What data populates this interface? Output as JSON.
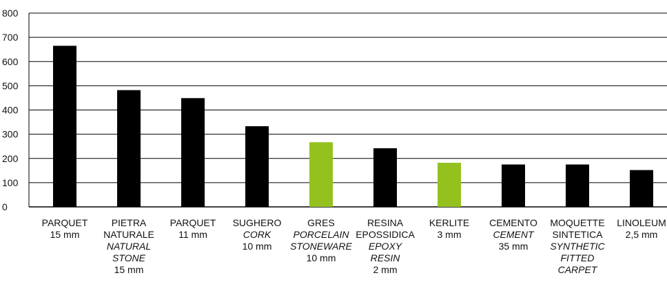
{
  "chart_data": {
    "type": "bar",
    "title": "",
    "xlabel": "",
    "ylabel": "",
    "ylim": [
      0,
      800
    ],
    "yticks": [
      "0",
      "100",
      "200",
      "300",
      "400",
      "500",
      "600",
      "700",
      "800"
    ],
    "grid": true,
    "legend": "none",
    "colors": {
      "default": "#000000",
      "highlight": "#95c11f",
      "grid": "#000000"
    },
    "categories": [
      {
        "label_lines": [
          {
            "text": "PARQUET",
            "italic": false
          },
          {
            "text": "15 mm",
            "italic": false
          }
        ],
        "value": 665,
        "highlight": false
      },
      {
        "label_lines": [
          {
            "text": "PIETRA",
            "italic": false
          },
          {
            "text": "NATURALE",
            "italic": false
          },
          {
            "text": "NATURAL",
            "italic": true
          },
          {
            "text": "STONE",
            "italic": true
          },
          {
            "text": "15 mm",
            "italic": false
          }
        ],
        "value": 482,
        "highlight": false
      },
      {
        "label_lines": [
          {
            "text": "PARQUET",
            "italic": false
          },
          {
            "text": "11 mm",
            "italic": false
          }
        ],
        "value": 449,
        "highlight": false
      },
      {
        "label_lines": [
          {
            "text": "SUGHERO",
            "italic": false
          },
          {
            "text": "CORK",
            "italic": true
          },
          {
            "text": "10 mm",
            "italic": false
          }
        ],
        "value": 333,
        "highlight": false
      },
      {
        "label_lines": [
          {
            "text": "GRES",
            "italic": false
          },
          {
            "text": "PORCELAIN",
            "italic": true
          },
          {
            "text": "STONEWARE",
            "italic": true
          },
          {
            "text": "10 mm",
            "italic": false
          }
        ],
        "value": 267,
        "highlight": true
      },
      {
        "label_lines": [
          {
            "text": "RESINA",
            "italic": false
          },
          {
            "text": "EPOSSIDICA",
            "italic": false
          },
          {
            "text": "EPOXY",
            "italic": true
          },
          {
            "text": "RESIN",
            "italic": true
          },
          {
            "text": "2 mm",
            "italic": false
          }
        ],
        "value": 242,
        "highlight": false
      },
      {
        "label_lines": [
          {
            "text": "KERLITE",
            "italic": false
          },
          {
            "text": "3 mm",
            "italic": false
          }
        ],
        "value": 182,
        "highlight": true
      },
      {
        "label_lines": [
          {
            "text": "CEMENTO",
            "italic": false
          },
          {
            "text": "CEMENT",
            "italic": true
          },
          {
            "text": "35 mm",
            "italic": false
          }
        ],
        "value": 175,
        "highlight": false
      },
      {
        "label_lines": [
          {
            "text": "MOQUETTE",
            "italic": false
          },
          {
            "text": "SINTETICA",
            "italic": false
          },
          {
            "text": "SYNTHETIC",
            "italic": true
          },
          {
            "text": "FITTED",
            "italic": true
          },
          {
            "text": "CARPET",
            "italic": true
          }
        ],
        "value": 175,
        "highlight": false
      },
      {
        "label_lines": [
          {
            "text": "LINOLEUM",
            "italic": false
          },
          {
            "text": "2,5 mm",
            "italic": false
          }
        ],
        "value": 152,
        "highlight": false
      }
    ]
  }
}
